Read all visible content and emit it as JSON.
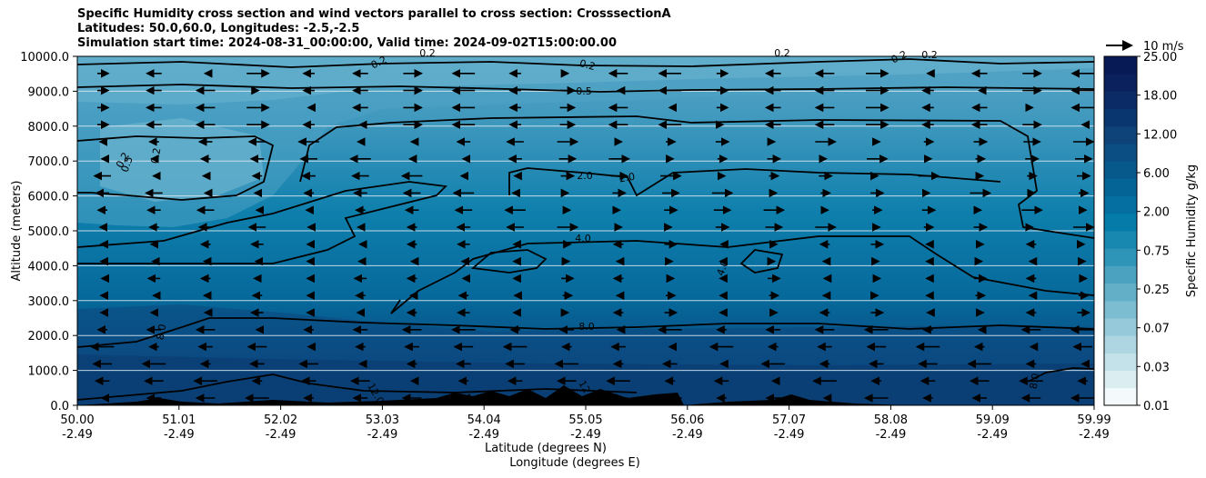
{
  "chart_data": {
    "type": "heatmap",
    "title_lines": [
      "Specific Humidity cross section and wind vectors parallel to cross section: CrosssectionA",
      "Latitudes: 50.0,60.0, Longitudes: -2.5,-2.5",
      "Simulation start time: 2024-08-31_00:00:00, Valid time: 2024-09-02T15:00:00.00"
    ],
    "xlabel": "Latitude (degrees N)",
    "xlabel2": "Longitude (degrees E)",
    "ylabel": "Altitude (meters)",
    "x_ticks_lat": [
      "50.00",
      "51.01",
      "52.02",
      "53.03",
      "54.04",
      "55.05",
      "56.06",
      "57.07",
      "58.08",
      "59.09",
      "59.99"
    ],
    "x_ticks_lon": [
      "-2.49",
      "-2.49",
      "-2.49",
      "-2.49",
      "-2.49",
      "-2.49",
      "-2.49",
      "-2.49",
      "-2.49",
      "-2.49",
      "-2.49"
    ],
    "y_ticks": [
      "0.0",
      "1000.0",
      "2000.0",
      "3000.0",
      "4000.0",
      "5000.0",
      "6000.0",
      "7000.0",
      "8000.0",
      "9000.0",
      "10000.0"
    ],
    "ylim": [
      0,
      10000
    ],
    "grid": "horizontal",
    "colorbar": {
      "label": "Specific Humidity g/kg",
      "ticks": [
        "0.01",
        "0.03",
        "0.07",
        "0.25",
        "0.75",
        "2.00",
        "6.00",
        "12.00",
        "18.00",
        "25.00"
      ],
      "colors": [
        "#f4fafb",
        "#dcedf2",
        "#c4e2ea",
        "#aed6e2",
        "#96cada",
        "#7dbdd1",
        "#63afc8",
        "#4aa2c0",
        "#2f95b8",
        "#1888b0",
        "#047ba9",
        "#046fa0",
        "#056496",
        "#07598c",
        "#0a4e83",
        "#0d4379",
        "#0a3670",
        "#0a2b66",
        "#0a215e",
        "#081a55"
      ]
    },
    "wind_reference": "10 m/s",
    "contour_labels": [
      "0.2",
      "0.2",
      "0.2",
      "0.2",
      "0.2",
      "0.2",
      "0.5",
      "0.5",
      "2.0",
      "2.0",
      "4.0",
      "4.0",
      "8.0",
      "8.0",
      "8.0",
      "12.0",
      "12.0"
    ]
  }
}
